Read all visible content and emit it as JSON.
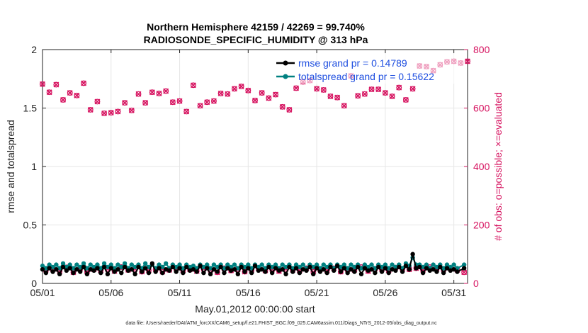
{
  "chart_data": {
    "type": "line",
    "title_line1": "Northern Hemisphere 42159 / 42269 = 99.740%",
    "title_line2": "RADIOSONDE_SPECIFIC_HUMIDITY @ 313 hPa",
    "xlabel": "May.01,2012 00:00:00 start",
    "ylabel_left": "rmse and totalspread",
    "ylabel_right": "# of obs: o=possible; ×=evaluated",
    "xlim": [
      0,
      31
    ],
    "ylim_left": [
      0,
      2
    ],
    "ylim_right": [
      0,
      800
    ],
    "x_ticks": [
      {
        "value": 0,
        "label": "05/01"
      },
      {
        "value": 5,
        "label": "05/06"
      },
      {
        "value": 10,
        "label": "05/11"
      },
      {
        "value": 15,
        "label": "05/16"
      },
      {
        "value": 20,
        "label": "05/21"
      },
      {
        "value": 25,
        "label": "05/26"
      },
      {
        "value": 30,
        "label": "05/31"
      }
    ],
    "y_ticks_left": [
      {
        "value": 0,
        "label": "0"
      },
      {
        "value": 0.5,
        "label": "0.5"
      },
      {
        "value": 1,
        "label": "1"
      },
      {
        "value": 1.5,
        "label": "1.5"
      },
      {
        "value": 2,
        "label": "2"
      }
    ],
    "y_ticks_right": [
      {
        "value": 0,
        "label": "0"
      },
      {
        "value": 200,
        "label": "200"
      },
      {
        "value": 400,
        "label": "400"
      },
      {
        "value": 600,
        "label": "600"
      },
      {
        "value": 800,
        "label": "800"
      }
    ],
    "legend": {
      "position": "top-right",
      "entries": [
        "rmse grand pr = 0.14789",
        "totalspread grand pr = 0.15622"
      ]
    },
    "colors": {
      "rmse": "#000000",
      "totalspread": "#008080",
      "obs": "#d6125f",
      "grid": "#e6e6e6"
    },
    "obs_count_x": [
      0,
      0.25,
      0.5,
      0.75,
      1.0,
      1.25,
      1.5,
      1.75,
      2.0,
      2.25,
      2.5,
      2.75,
      3.0,
      3.25,
      3.5,
      3.75,
      4.0,
      4.25,
      4.5,
      4.75,
      5.0,
      5.25,
      5.5,
      5.75,
      6.0,
      6.25,
      6.5,
      6.75,
      7.0,
      7.25,
      7.5,
      7.75,
      8.0,
      8.25,
      8.5,
      8.75,
      9.0,
      9.25,
      9.5,
      9.75,
      10.0,
      10.25,
      10.5,
      10.75,
      11.0,
      11.25,
      11.5,
      11.75,
      12.0,
      12.25,
      12.5,
      12.75,
      13.0,
      13.25,
      13.5,
      13.75,
      14.0,
      14.25,
      14.5,
      14.75,
      15.0,
      15.25,
      15.5,
      15.75,
      16.0,
      16.25,
      16.5,
      16.75,
      17.0,
      17.25,
      17.5,
      17.75,
      18.0,
      18.25,
      18.5,
      18.75,
      19.0,
      19.25,
      19.5,
      19.75,
      20.0,
      20.25,
      20.5,
      20.75,
      21.0,
      21.25,
      21.5,
      21.75,
      22.0,
      22.25,
      22.5,
      22.75,
      23.0,
      23.25,
      23.5,
      23.75,
      24.0,
      24.25,
      24.5,
      24.75,
      25.0,
      25.25,
      25.5,
      25.75,
      26.0,
      26.25,
      26.5,
      26.75,
      27.0,
      27.25,
      27.5,
      27.75,
      28.0,
      28.25,
      28.5,
      28.75,
      29.0,
      29.25,
      29.5,
      29.75,
      30.0,
      30.25,
      30.5,
      30.75,
      31.0
    ],
    "obs_count_y": [
      682,
      46,
      654,
      48,
      680,
      42,
      628,
      55,
      652,
      38,
      643,
      52,
      685,
      40,
      594,
      48,
      622,
      44,
      582,
      50,
      584,
      42,
      588,
      56,
      618,
      46,
      592,
      50,
      648,
      40,
      618,
      44,
      654,
      48,
      650,
      40,
      658,
      46,
      620,
      52,
      624,
      44,
      588,
      48,
      678,
      42,
      608,
      50,
      620,
      46,
      624,
      38,
      650,
      52,
      648,
      44,
      666,
      48,
      674,
      40,
      660,
      46,
      626,
      52,
      652,
      44,
      634,
      48,
      646,
      42,
      604,
      50,
      594,
      46,
      668,
      44,
      690,
      52,
      694,
      40,
      666,
      48,
      662,
      44,
      640,
      52,
      636,
      40,
      608,
      48,
      710,
      46,
      642,
      56,
      648,
      42,
      664,
      50,
      664,
      48,
      652,
      44,
      640,
      54,
      670,
      50,
      628,
      48,
      666,
      52,
      744,
      46,
      742,
      56,
      728,
      50,
      748,
      48,
      758,
      52,
      760,
      46,
      754,
      38,
      760
    ],
    "rmse_x": [
      0,
      0.25,
      0.5,
      0.75,
      1.0,
      1.25,
      1.5,
      1.75,
      2.0,
      2.25,
      2.5,
      2.75,
      3.0,
      3.25,
      3.5,
      3.75,
      4.0,
      4.25,
      4.5,
      4.75,
      5.0,
      5.25,
      5.5,
      5.75,
      6.0,
      6.25,
      6.5,
      6.75,
      7.0,
      7.25,
      7.5,
      7.75,
      8.0,
      8.25,
      8.5,
      8.75,
      9.0,
      9.25,
      9.5,
      9.75,
      10.0,
      10.25,
      10.5,
      10.75,
      11.0,
      11.25,
      11.5,
      11.75,
      12.0,
      12.25,
      12.5,
      12.75,
      13.0,
      13.25,
      13.5,
      13.75,
      14.0,
      14.25,
      14.5,
      14.75,
      15.0,
      15.25,
      15.5,
      15.75,
      16.0,
      16.25,
      16.5,
      16.75,
      17.0,
      17.25,
      17.5,
      17.75,
      18.0,
      18.25,
      18.5,
      18.75,
      19.0,
      19.25,
      19.5,
      19.75,
      20.0,
      20.25,
      20.5,
      20.75,
      21.0,
      21.25,
      21.5,
      21.75,
      22.0,
      22.25,
      22.5,
      22.75,
      23.0,
      23.25,
      23.5,
      23.75,
      24.0,
      24.25,
      24.5,
      24.75,
      25.0,
      25.25,
      25.5,
      25.75,
      26.0,
      26.25,
      26.5,
      26.75,
      27.0,
      27.25,
      27.5,
      27.75,
      28.0,
      28.25,
      28.5,
      28.75,
      29.0,
      29.25,
      29.5,
      29.75,
      30.0,
      30.25,
      30.75
    ],
    "rmse_y": [
      0.12,
      0.09,
      0.13,
      0.1,
      0.12,
      0.08,
      0.14,
      0.11,
      0.13,
      0.09,
      0.12,
      0.1,
      0.14,
      0.08,
      0.12,
      0.11,
      0.13,
      0.09,
      0.14,
      0.08,
      0.13,
      0.1,
      0.12,
      0.09,
      0.14,
      0.11,
      0.12,
      0.08,
      0.14,
      0.1,
      0.13,
      0.09,
      0.17,
      0.1,
      0.13,
      0.09,
      0.12,
      0.11,
      0.14,
      0.1,
      0.13,
      0.09,
      0.14,
      0.11,
      0.12,
      0.1,
      0.15,
      0.09,
      0.13,
      0.08,
      0.12,
      0.1,
      0.14,
      0.09,
      0.13,
      0.11,
      0.12,
      0.08,
      0.14,
      0.1,
      0.13,
      0.09,
      0.15,
      0.11,
      0.12,
      0.1,
      0.14,
      0.09,
      0.13,
      0.11,
      0.12,
      0.08,
      0.14,
      0.1,
      0.13,
      0.09,
      0.12,
      0.11,
      0.14,
      0.08,
      0.13,
      0.1,
      0.12,
      0.09,
      0.14,
      0.11,
      0.15,
      0.1,
      0.13,
      0.09,
      0.12,
      0.1,
      0.14,
      0.08,
      0.13,
      0.11,
      0.12,
      0.09,
      0.14,
      0.1,
      0.13,
      0.09,
      0.12,
      0.11,
      0.14,
      0.1,
      0.15,
      0.12,
      0.25,
      0.13,
      0.14,
      0.09,
      0.13,
      0.11,
      0.12,
      0.1,
      0.14,
      0.09,
      0.13,
      0.11,
      0.12,
      0.1,
      0.13
    ],
    "totalspread_x": [
      0,
      0.25,
      0.5,
      0.75,
      1.0,
      1.25,
      1.5,
      1.75,
      2.0,
      2.25,
      2.5,
      2.75,
      3.0,
      3.25,
      3.5,
      3.75,
      4.0,
      4.25,
      4.5,
      4.75,
      5.0,
      5.25,
      5.5,
      5.75,
      6.0,
      6.25,
      6.5,
      6.75,
      7.0,
      7.25,
      7.5,
      7.75,
      8.0,
      8.25,
      8.5,
      8.75,
      9.0,
      9.25,
      9.5,
      9.75,
      10.0,
      10.25,
      10.5,
      10.75,
      11.0,
      11.25,
      11.5,
      11.75,
      12.0,
      12.25,
      12.5,
      12.75,
      13.0,
      13.25,
      13.5,
      13.75,
      14.0,
      14.25,
      14.5,
      14.75,
      15.0,
      15.25,
      15.5,
      15.75,
      16.0,
      16.25,
      16.5,
      16.75,
      17.0,
      17.25,
      17.5,
      17.75,
      18.0,
      18.25,
      18.5,
      18.75,
      19.0,
      19.25,
      19.5,
      19.75,
      20.0,
      20.25,
      20.5,
      20.75,
      21.0,
      21.25,
      21.5,
      21.75,
      22.0,
      22.25,
      22.5,
      22.75,
      23.0,
      23.25,
      23.5,
      23.75,
      24.0,
      24.25,
      24.5,
      24.75,
      25.0,
      25.25,
      25.5,
      25.75,
      26.0,
      26.25,
      26.5,
      26.75,
      27.0,
      27.25,
      27.5,
      27.75,
      28.0,
      28.25,
      28.5,
      28.75,
      29.0,
      29.25,
      29.5,
      29.75,
      30.0,
      30.25,
      30.75
    ],
    "totalspread_y": [
      0.15,
      0.13,
      0.16,
      0.14,
      0.16,
      0.13,
      0.17,
      0.14,
      0.16,
      0.13,
      0.16,
      0.14,
      0.17,
      0.13,
      0.16,
      0.14,
      0.16,
      0.13,
      0.17,
      0.14,
      0.16,
      0.13,
      0.16,
      0.14,
      0.17,
      0.13,
      0.16,
      0.14,
      0.16,
      0.13,
      0.17,
      0.14,
      0.16,
      0.13,
      0.16,
      0.14,
      0.17,
      0.13,
      0.16,
      0.14,
      0.16,
      0.13,
      0.16,
      0.14,
      0.15,
      0.13,
      0.16,
      0.14,
      0.16,
      0.13,
      0.16,
      0.14,
      0.16,
      0.13,
      0.16,
      0.14,
      0.16,
      0.13,
      0.16,
      0.14,
      0.16,
      0.13,
      0.16,
      0.14,
      0.16,
      0.13,
      0.16,
      0.14,
      0.16,
      0.13,
      0.16,
      0.14,
      0.16,
      0.13,
      0.16,
      0.14,
      0.16,
      0.13,
      0.16,
      0.14,
      0.16,
      0.13,
      0.16,
      0.14,
      0.16,
      0.13,
      0.16,
      0.14,
      0.16,
      0.13,
      0.16,
      0.14,
      0.16,
      0.13,
      0.16,
      0.14,
      0.16,
      0.13,
      0.16,
      0.14,
      0.16,
      0.13,
      0.16,
      0.14,
      0.16,
      0.13,
      0.17,
      0.15,
      0.22,
      0.16,
      0.16,
      0.14,
      0.16,
      0.13,
      0.16,
      0.14,
      0.16,
      0.13,
      0.16,
      0.14,
      0.16,
      0.13,
      0.16
    ]
  },
  "footer_text": "data file: /Users/raeder/DAI/ATM_forcXX/CAM6_setup/f.e21.FHIST_BGC.f09_025.CAM6assim.011/Diags_NTrS_2012-05/obs_diag_output.nc"
}
